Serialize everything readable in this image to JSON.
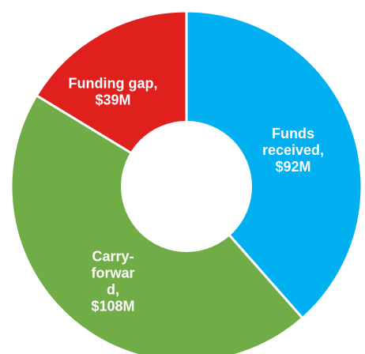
{
  "chart_data": {
    "type": "pie",
    "donut": true,
    "title": "",
    "slices": [
      {
        "label": "Funds received",
        "value": 92,
        "value_label": "$92M",
        "color": "#00B0F0",
        "display_lines": [
          "Funds",
          "received,",
          "$92M"
        ]
      },
      {
        "label": "Carry-forward",
        "value": 108,
        "value_label": "$108M",
        "color": "#70AD47",
        "display_lines": [
          "Carry-",
          "forwar",
          "d,",
          "$108M"
        ]
      },
      {
        "label": "Funding gap",
        "value": 39,
        "value_label": "$39M",
        "color": "#E0201C",
        "display_lines": [
          "Funding gap,",
          "$39M"
        ]
      }
    ]
  }
}
